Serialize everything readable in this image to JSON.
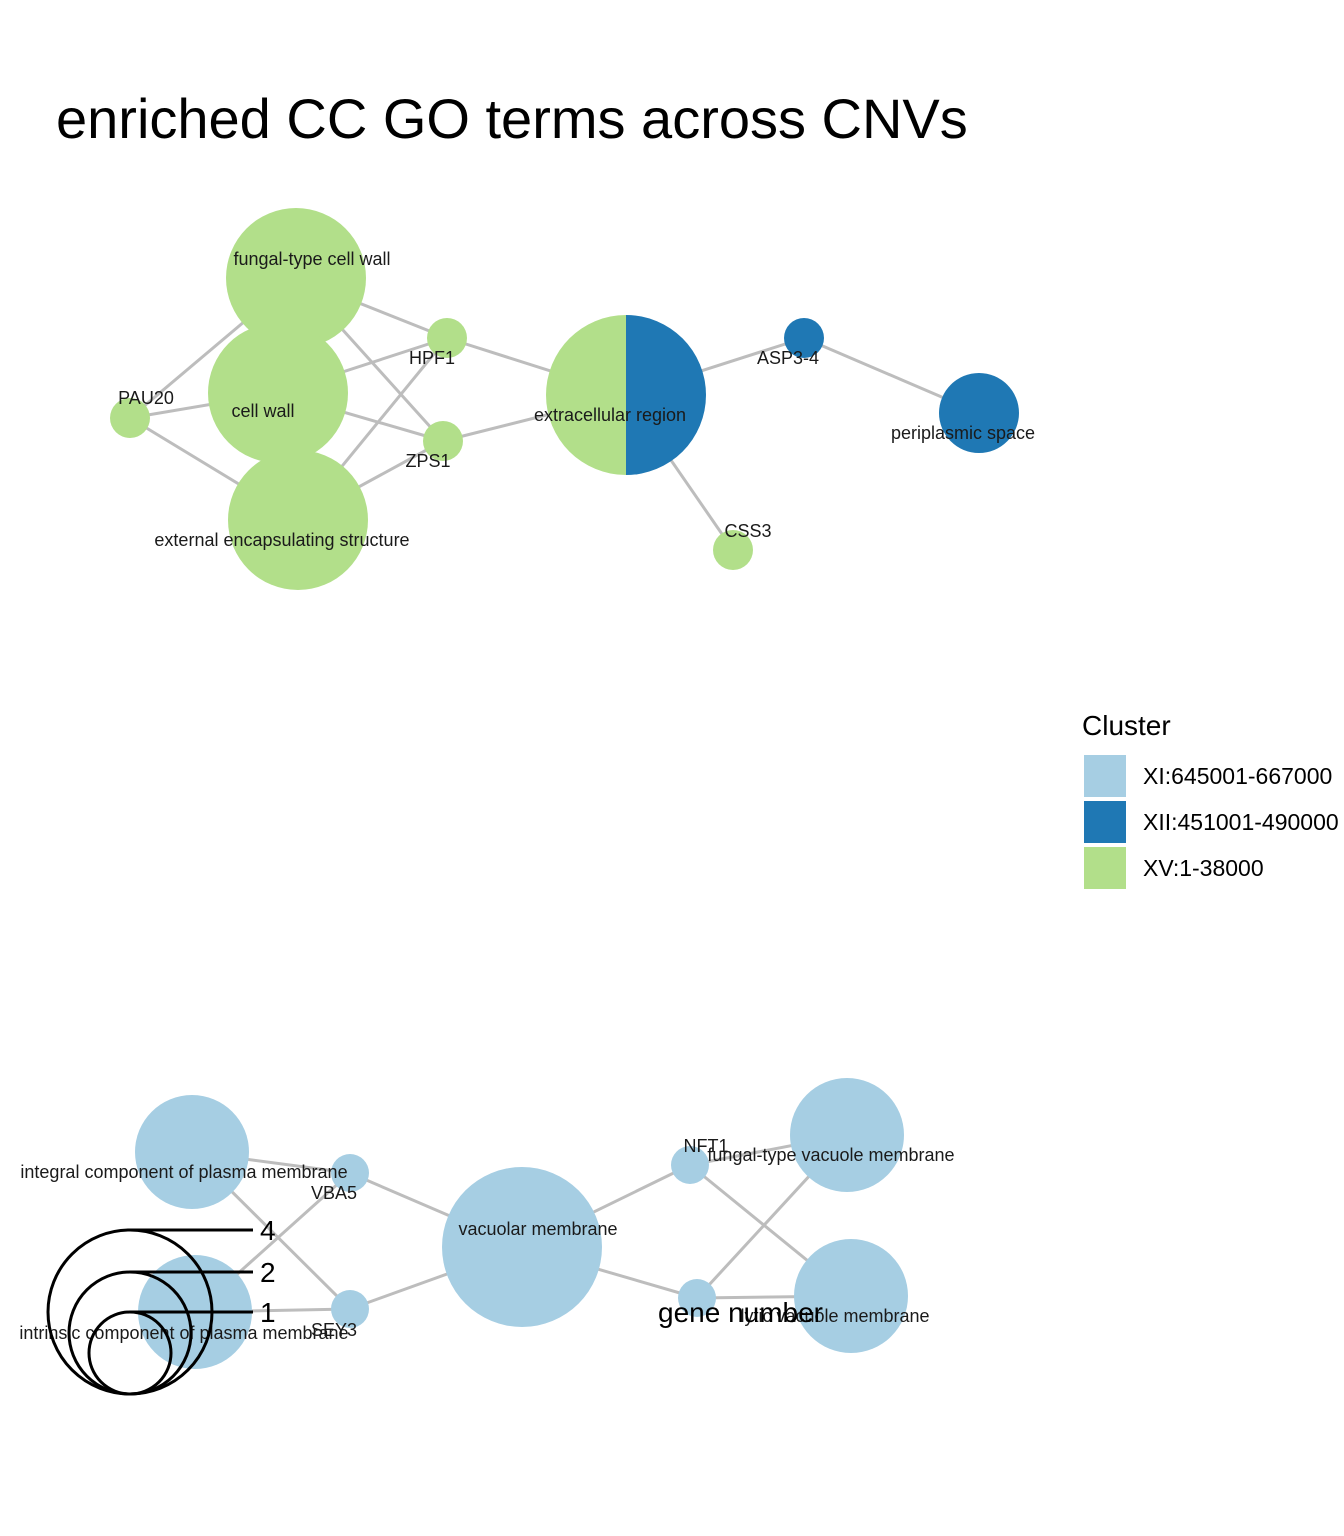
{
  "title": "enriched CC GO terms across CNVs",
  "colors": {
    "XI": "#a6cee3",
    "XII": "#1f78b4",
    "XV": "#b2df8a",
    "edge": "#bdbdbd"
  },
  "legend": {
    "title": "Cluster",
    "items": [
      {
        "key": "XI",
        "label": "XI:645001-667000"
      },
      {
        "key": "XII",
        "label": "XII:451001-490000"
      },
      {
        "key": "XV",
        "label": "XV:1-38000"
      }
    ]
  },
  "size_legend": {
    "title": "gene number",
    "values": [
      "4",
      "2",
      "1"
    ]
  },
  "network": {
    "nodes": [
      {
        "id": "fungal_cell_wall",
        "label": "fungal-type cell wall",
        "cluster": "XV",
        "genes": 4
      },
      {
        "id": "cell_wall",
        "label": "cell wall",
        "cluster": "XV",
        "genes": 4
      },
      {
        "id": "external_enc",
        "label": "external encapsulating structure",
        "cluster": "XV",
        "genes": 4
      },
      {
        "id": "PAU20",
        "label": "PAU20",
        "cluster": "XV",
        "genes": 1
      },
      {
        "id": "HPF1",
        "label": "HPF1",
        "cluster": "XV",
        "genes": 1
      },
      {
        "id": "ZPS1",
        "label": "ZPS1",
        "cluster": "XV",
        "genes": 1
      },
      {
        "id": "extracellular",
        "label": "extracellular region",
        "cluster": "XV+XII",
        "genes": 5
      },
      {
        "id": "ASP3_4",
        "label": "ASP3-4",
        "cluster": "XII",
        "genes": 1
      },
      {
        "id": "periplasmic",
        "label": "periplasmic space",
        "cluster": "XII",
        "genes": 1
      },
      {
        "id": "CSS3",
        "label": "CSS3",
        "cluster": "XV",
        "genes": 1
      },
      {
        "id": "integral_pm",
        "label": "integral component of plasma membrane",
        "cluster": "XI",
        "genes": 2
      },
      {
        "id": "intrinsic_pm",
        "label": "intrinsic component of plasma membrane",
        "cluster": "XI",
        "genes": 2
      },
      {
        "id": "VBA5",
        "label": "VBA5",
        "cluster": "XI",
        "genes": 1
      },
      {
        "id": "SEY3",
        "label": "SEY3",
        "cluster": "XI",
        "genes": 1
      },
      {
        "id": "vacuolar",
        "label": "vacuolar membrane",
        "cluster": "XI",
        "genes": 4
      },
      {
        "id": "NFT1",
        "label": "NFT1",
        "cluster": "XI",
        "genes": 1
      },
      {
        "id": "fungal_vac",
        "label": "fungal-type vacuole membrane",
        "cluster": "XI",
        "genes": 2
      },
      {
        "id": "lytic_vac",
        "label": "lytic vacuole membrane",
        "cluster": "XI",
        "genes": 2
      },
      {
        "id": "XI_gene_2",
        "label": "",
        "cluster": "XI",
        "genes": 1
      }
    ],
    "edges": [
      [
        "fungal_cell_wall",
        "PAU20"
      ],
      [
        "fungal_cell_wall",
        "HPF1"
      ],
      [
        "fungal_cell_wall",
        "ZPS1"
      ],
      [
        "cell_wall",
        "PAU20"
      ],
      [
        "cell_wall",
        "HPF1"
      ],
      [
        "cell_wall",
        "ZPS1"
      ],
      [
        "external_enc",
        "PAU20"
      ],
      [
        "external_enc",
        "HPF1"
      ],
      [
        "external_enc",
        "ZPS1"
      ],
      [
        "HPF1",
        "extracellular"
      ],
      [
        "ZPS1",
        "extracellular"
      ],
      [
        "extracellular",
        "ASP3_4"
      ],
      [
        "extracellular",
        "CSS3"
      ],
      [
        "ASP3_4",
        "periplasmic"
      ],
      [
        "integral_pm",
        "VBA5"
      ],
      [
        "integral_pm",
        "SEY3"
      ],
      [
        "intrinsic_pm",
        "VBA5"
      ],
      [
        "intrinsic_pm",
        "SEY3"
      ],
      [
        "VBA5",
        "vacuolar"
      ],
      [
        "SEY3",
        "vacuolar"
      ],
      [
        "vacuolar",
        "NFT1"
      ],
      [
        "vacuolar",
        "XI_gene_2"
      ],
      [
        "NFT1",
        "fungal_vac"
      ],
      [
        "NFT1",
        "lytic_vac"
      ],
      [
        "XI_gene_2",
        "fungal_vac"
      ],
      [
        "XI_gene_2",
        "lytic_vac"
      ]
    ]
  }
}
